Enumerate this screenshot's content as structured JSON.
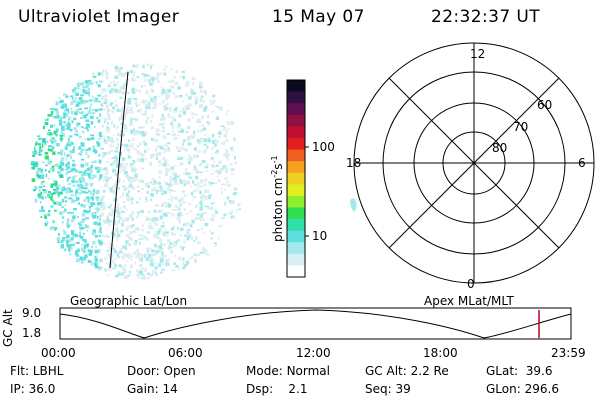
{
  "header": {
    "title": "Ultraviolet Imager",
    "date": "15 May 07",
    "time": "22:32:37 UT"
  },
  "colorbar": {
    "unit_prefix": "photon cm",
    "unit_exp1": "-2",
    "unit_mid": "s",
    "unit_exp2": "-1",
    "ticks": [
      "100",
      "10"
    ],
    "colors": [
      "#ffffff",
      "#d8f0f4",
      "#a6e9ec",
      "#5ddfe0",
      "#2fe0a8",
      "#30e050",
      "#90f030",
      "#e0f020",
      "#f0d020",
      "#f8a020",
      "#f06020",
      "#e02020",
      "#c01030",
      "#901040",
      "#601050",
      "#301040",
      "#0a0a20"
    ]
  },
  "polar_plot": {
    "mlt_labels": [
      "12",
      "18",
      "6",
      "0"
    ],
    "lat_labels": [
      "60",
      "70",
      "80"
    ]
  },
  "ephemeris": {
    "left_label": "Geographic Lat/Lon",
    "right_label": "Apex MLat/MLT",
    "y_label": "GC Alt",
    "y_ticks": [
      "9.0",
      "1.8"
    ],
    "time_ticks": [
      "00:00",
      "06:00",
      "12:00",
      "18:00",
      "23:59"
    ]
  },
  "info": {
    "row1": [
      {
        "label": "Flt:",
        "value": "LBHL"
      },
      {
        "label": "Door:",
        "value": "Open"
      },
      {
        "label": "Mode:",
        "value": "Normal"
      },
      {
        "label": "GC Alt:",
        "value": "2.2 Re"
      },
      {
        "label": "GLat:",
        "value": "39.6"
      }
    ],
    "row2": [
      {
        "label": "IP:",
        "value": "36.0"
      },
      {
        "label": "Gain:",
        "value": "14"
      },
      {
        "label": "Dsp:",
        "value": "2.1"
      },
      {
        "label": "Seq:",
        "value": "39"
      },
      {
        "label": "GLon:",
        "value": "296.6"
      }
    ]
  }
}
